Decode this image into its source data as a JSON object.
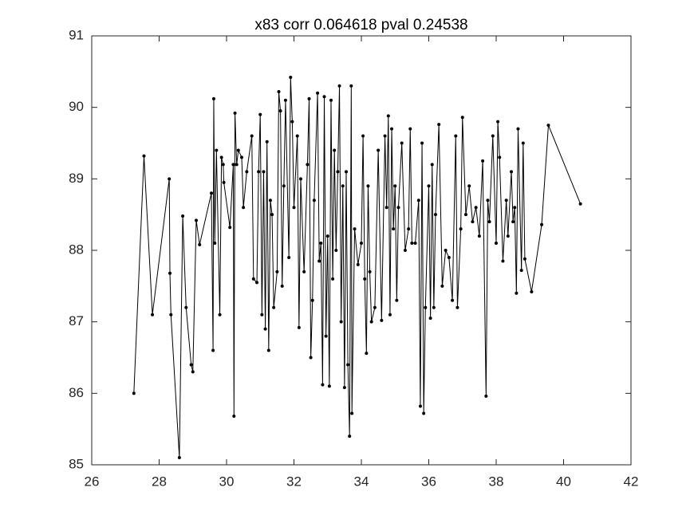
{
  "chart_data": {
    "type": "line",
    "title": "x83 corr 0.064618 pval 0.24538",
    "color": "#000000",
    "marker": true,
    "xlim": [
      26,
      42
    ],
    "xticks": [
      26,
      28,
      30,
      32,
      34,
      36,
      38,
      40,
      42
    ],
    "ylim": [
      85,
      91
    ],
    "yticks": [
      85,
      86,
      87,
      88,
      89,
      90,
      91
    ],
    "x": [
      27.25,
      27.55,
      27.8,
      28.3,
      28.32,
      28.35,
      28.6,
      28.7,
      28.8,
      28.95,
      29.0,
      29.1,
      29.2,
      29.55,
      29.6,
      29.62,
      29.65,
      29.7,
      29.8,
      29.85,
      29.9,
      29.92,
      30.1,
      30.2,
      30.22,
      30.25,
      30.3,
      30.35,
      30.45,
      30.5,
      30.6,
      30.75,
      30.8,
      30.9,
      30.95,
      31.0,
      31.05,
      31.1,
      31.15,
      31.2,
      31.25,
      31.3,
      31.35,
      31.4,
      31.5,
      31.55,
      31.6,
      31.65,
      31.7,
      31.75,
      31.85,
      31.9,
      31.95,
      32.0,
      32.1,
      32.15,
      32.2,
      32.3,
      32.4,
      32.45,
      32.5,
      32.55,
      32.6,
      32.7,
      32.75,
      32.8,
      32.85,
      32.9,
      32.95,
      33.0,
      33.05,
      33.1,
      33.15,
      33.2,
      33.25,
      33.3,
      33.35,
      33.4,
      33.45,
      33.5,
      33.55,
      33.6,
      33.65,
      33.7,
      33.72,
      33.8,
      33.9,
      34.0,
      34.05,
      34.1,
      34.15,
      34.2,
      34.25,
      34.3,
      34.4,
      34.5,
      34.6,
      34.7,
      34.75,
      34.8,
      34.85,
      34.9,
      34.95,
      35.0,
      35.05,
      35.1,
      35.2,
      35.3,
      35.4,
      35.45,
      35.5,
      35.6,
      35.7,
      35.75,
      35.8,
      35.85,
      35.9,
      36.0,
      36.05,
      36.1,
      36.15,
      36.2,
      36.3,
      36.4,
      36.5,
      36.6,
      36.7,
      36.8,
      36.85,
      36.95,
      37.0,
      37.1,
      37.2,
      37.3,
      37.4,
      37.5,
      37.6,
      37.7,
      37.75,
      37.8,
      37.9,
      38.0,
      38.05,
      38.1,
      38.2,
      38.3,
      38.35,
      38.45,
      38.5,
      38.55,
      38.6,
      38.65,
      38.75,
      38.8,
      38.85,
      39.05,
      39.35,
      39.55,
      40.5
    ],
    "values": [
      86.0,
      89.32,
      87.1,
      89.0,
      87.68,
      87.1,
      85.1,
      88.48,
      87.2,
      86.4,
      86.3,
      88.42,
      88.08,
      88.8,
      86.6,
      90.12,
      88.1,
      89.4,
      87.1,
      89.3,
      89.2,
      88.95,
      88.32,
      89.2,
      85.68,
      89.92,
      89.2,
      89.4,
      89.3,
      88.6,
      89.1,
      89.6,
      87.6,
      87.55,
      89.1,
      89.9,
      87.1,
      89.1,
      86.9,
      89.52,
      86.6,
      88.7,
      88.5,
      87.2,
      87.7,
      90.22,
      89.95,
      87.5,
      88.9,
      90.1,
      87.9,
      90.42,
      89.8,
      88.6,
      89.6,
      86.92,
      89.0,
      87.7,
      89.2,
      90.12,
      86.5,
      87.3,
      88.7,
      90.2,
      87.85,
      88.1,
      86.12,
      90.15,
      86.8,
      88.2,
      86.1,
      90.1,
      87.6,
      89.4,
      88.0,
      89.1,
      90.3,
      87.0,
      88.9,
      86.08,
      89.1,
      86.4,
      85.4,
      90.3,
      85.72,
      88.3,
      87.8,
      88.1,
      89.6,
      87.6,
      86.56,
      88.9,
      87.7,
      87.0,
      87.2,
      89.4,
      87.02,
      89.6,
      88.6,
      89.88,
      87.1,
      89.7,
      88.3,
      88.9,
      87.3,
      88.6,
      89.5,
      88.0,
      88.3,
      89.7,
      88.1,
      88.1,
      88.7,
      85.82,
      89.5,
      85.72,
      87.2,
      88.9,
      87.05,
      89.2,
      87.2,
      88.5,
      89.76,
      87.5,
      88.0,
      87.9,
      87.3,
      89.6,
      87.2,
      88.3,
      89.86,
      88.5,
      88.9,
      88.4,
      88.6,
      88.2,
      89.25,
      85.96,
      88.7,
      88.4,
      89.6,
      88.1,
      89.8,
      89.3,
      87.85,
      88.7,
      88.2,
      89.1,
      88.4,
      88.6,
      87.4,
      89.7,
      87.72,
      89.5,
      87.88,
      87.42,
      88.36,
      89.75,
      88.65
    ]
  }
}
